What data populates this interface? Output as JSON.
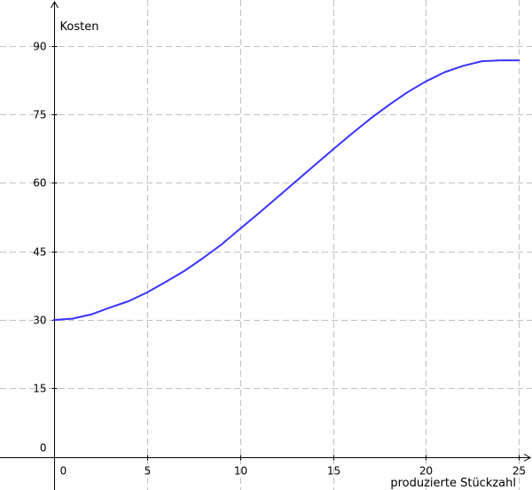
{
  "chart_data": {
    "type": "line",
    "ylabel": "Kosten",
    "xlabel": "produzierte Stückzahl",
    "xlim": [
      -2.9,
      25.7
    ],
    "ylim": [
      -7.2,
      100
    ],
    "x_ticks": [
      0,
      5,
      10,
      15,
      20,
      25
    ],
    "y_ticks": [
      0,
      15,
      30,
      45,
      60,
      75,
      90
    ],
    "grid": true,
    "series": [
      {
        "color": "#3a33ff",
        "x": [
          0,
          1,
          2,
          3,
          4,
          5,
          6,
          7,
          8,
          9,
          10,
          11,
          12,
          13,
          14,
          15,
          16,
          17,
          18,
          19,
          20,
          21,
          22,
          23,
          24,
          25
        ],
        "values": [
          30,
          30.3,
          31.2,
          32.7,
          34.1,
          36,
          38.3,
          40.7,
          43.5,
          46.5,
          49.9,
          53.3,
          56.8,
          60.3,
          63.8,
          67.3,
          70.7,
          74,
          77,
          79.8,
          82.2,
          84.2,
          85.6,
          86.6,
          86.8,
          86.8
        ]
      }
    ]
  }
}
